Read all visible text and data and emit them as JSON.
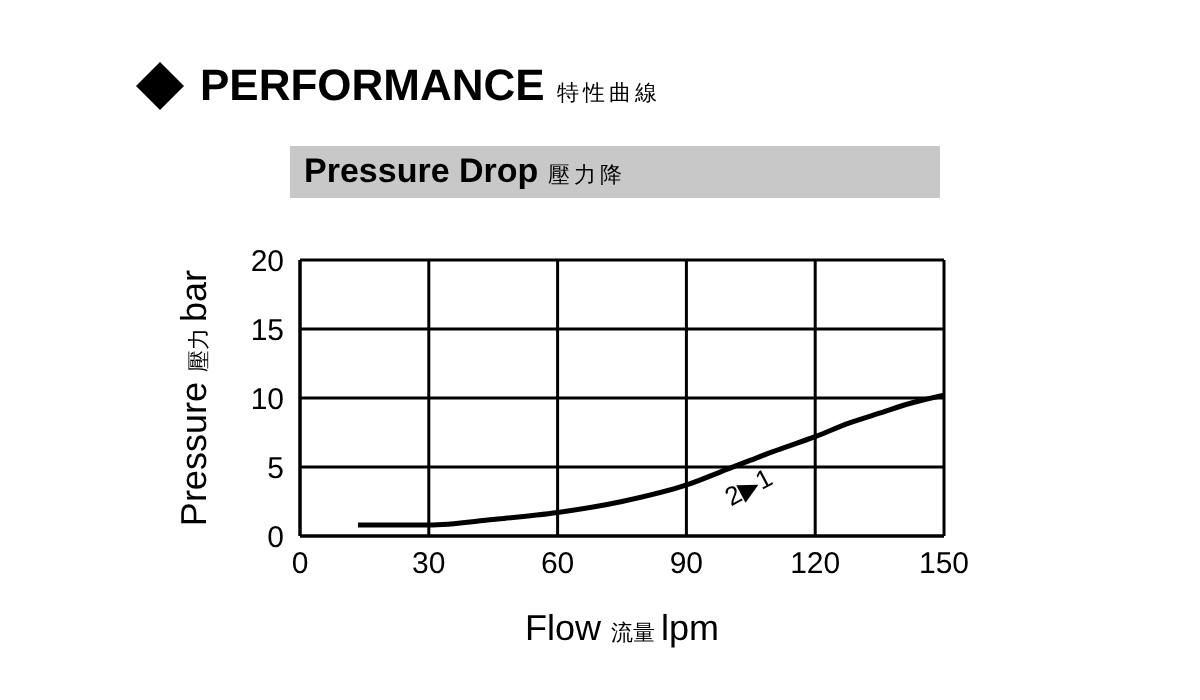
{
  "chart_data": {
    "type": "line",
    "title": "PERFORMANCE 特性曲線",
    "subtitle": "Pressure Drop 壓力降",
    "xlabel": "Flow 流量 lpm",
    "ylabel": "Pressure 壓力 bar",
    "annotations": [
      "2▶1"
    ],
    "x": [
      13.5,
      30,
      45,
      60,
      75,
      90,
      100,
      105,
      110,
      120,
      128,
      135,
      142,
      150
    ],
    "series": [
      {
        "color": "#000000",
        "values": [
          0.8,
          0.8,
          1.2,
          1.7,
          2.5,
          3.7,
          4.9,
          5.5,
          6.1,
          7.2,
          8.2,
          8.9,
          9.6,
          10.2
        ]
      }
    ],
    "xlim": [
      0,
      150
    ],
    "xticks": [
      0,
      30,
      60,
      90,
      120,
      150
    ],
    "ylim": [
      0,
      20
    ],
    "yticks": [
      0,
      5,
      10,
      15,
      20
    ],
    "grid": true
  }
}
